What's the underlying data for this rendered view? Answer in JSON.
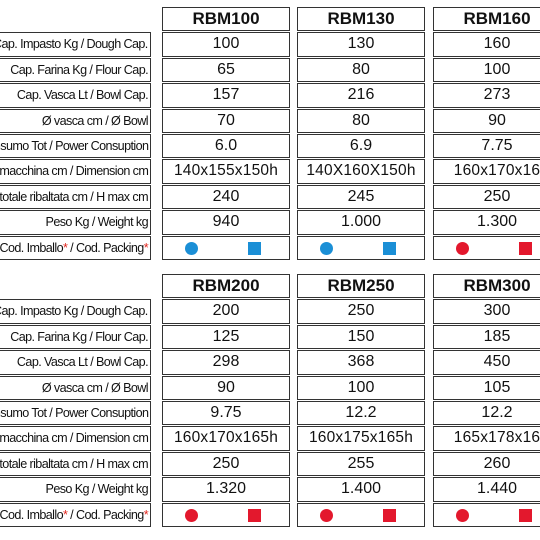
{
  "labels": {
    "dough_cap": "Cap. Impasto Kg / Dough Cap.",
    "flour_cap": "Cap. Farina Kg / Flour Cap.",
    "bowl_cap": "Cap. Vasca Lt / Bowl Cap.",
    "bowl_diam": "Ø vasca cm / Ø Bowl",
    "power": "Consumo Tot / Power Consuption",
    "dimension": "Dim. macchina cm / Dimension cm",
    "h_max": "H totale ribaltata cm / H max cm",
    "weight": "Peso Kg / Weight kg",
    "packing_it": "Cod. Imballo",
    "packing_en": " / Cod. Packing",
    "star": "*"
  },
  "table1": {
    "models": [
      "RBM100",
      "RBM130",
      "RBM160"
    ],
    "dough_cap": [
      "100",
      "130",
      "160"
    ],
    "flour_cap": [
      "65",
      "80",
      "100"
    ],
    "bowl_cap": [
      "157",
      "216",
      "273"
    ],
    "bowl_diam": [
      "70",
      "80",
      "90"
    ],
    "power": [
      "6.0",
      "6.9",
      "7.75"
    ],
    "dimension": [
      "140x155x150h",
      "140X160X150h",
      "160x170x16"
    ],
    "h_max": [
      "240",
      "245",
      "250"
    ],
    "weight": [
      "940",
      "1.000",
      "1.300"
    ],
    "packing_colors": [
      "#1b8fd6",
      "#1b8fd6",
      "#e3182d"
    ]
  },
  "table2": {
    "models": [
      "RBM200",
      "RBM250",
      "RBM300"
    ],
    "dough_cap": [
      "200",
      "250",
      "300"
    ],
    "flour_cap": [
      "125",
      "150",
      "185"
    ],
    "bowl_cap": [
      "298",
      "368",
      "450"
    ],
    "bowl_diam": [
      "90",
      "100",
      "105"
    ],
    "power": [
      "9.75",
      "12.2",
      "12.2"
    ],
    "dimension": [
      "160x170x165h",
      "160x175x165h",
      "165x178x16"
    ],
    "h_max": [
      "250",
      "255",
      "260"
    ],
    "weight": [
      "1.320",
      "1.400",
      "1.440"
    ],
    "packing_colors": [
      "#e3182d",
      "#e3182d",
      "#e3182d"
    ]
  },
  "icons": {
    "packing_left": "circle-icon",
    "packing_right": "square-icon"
  }
}
